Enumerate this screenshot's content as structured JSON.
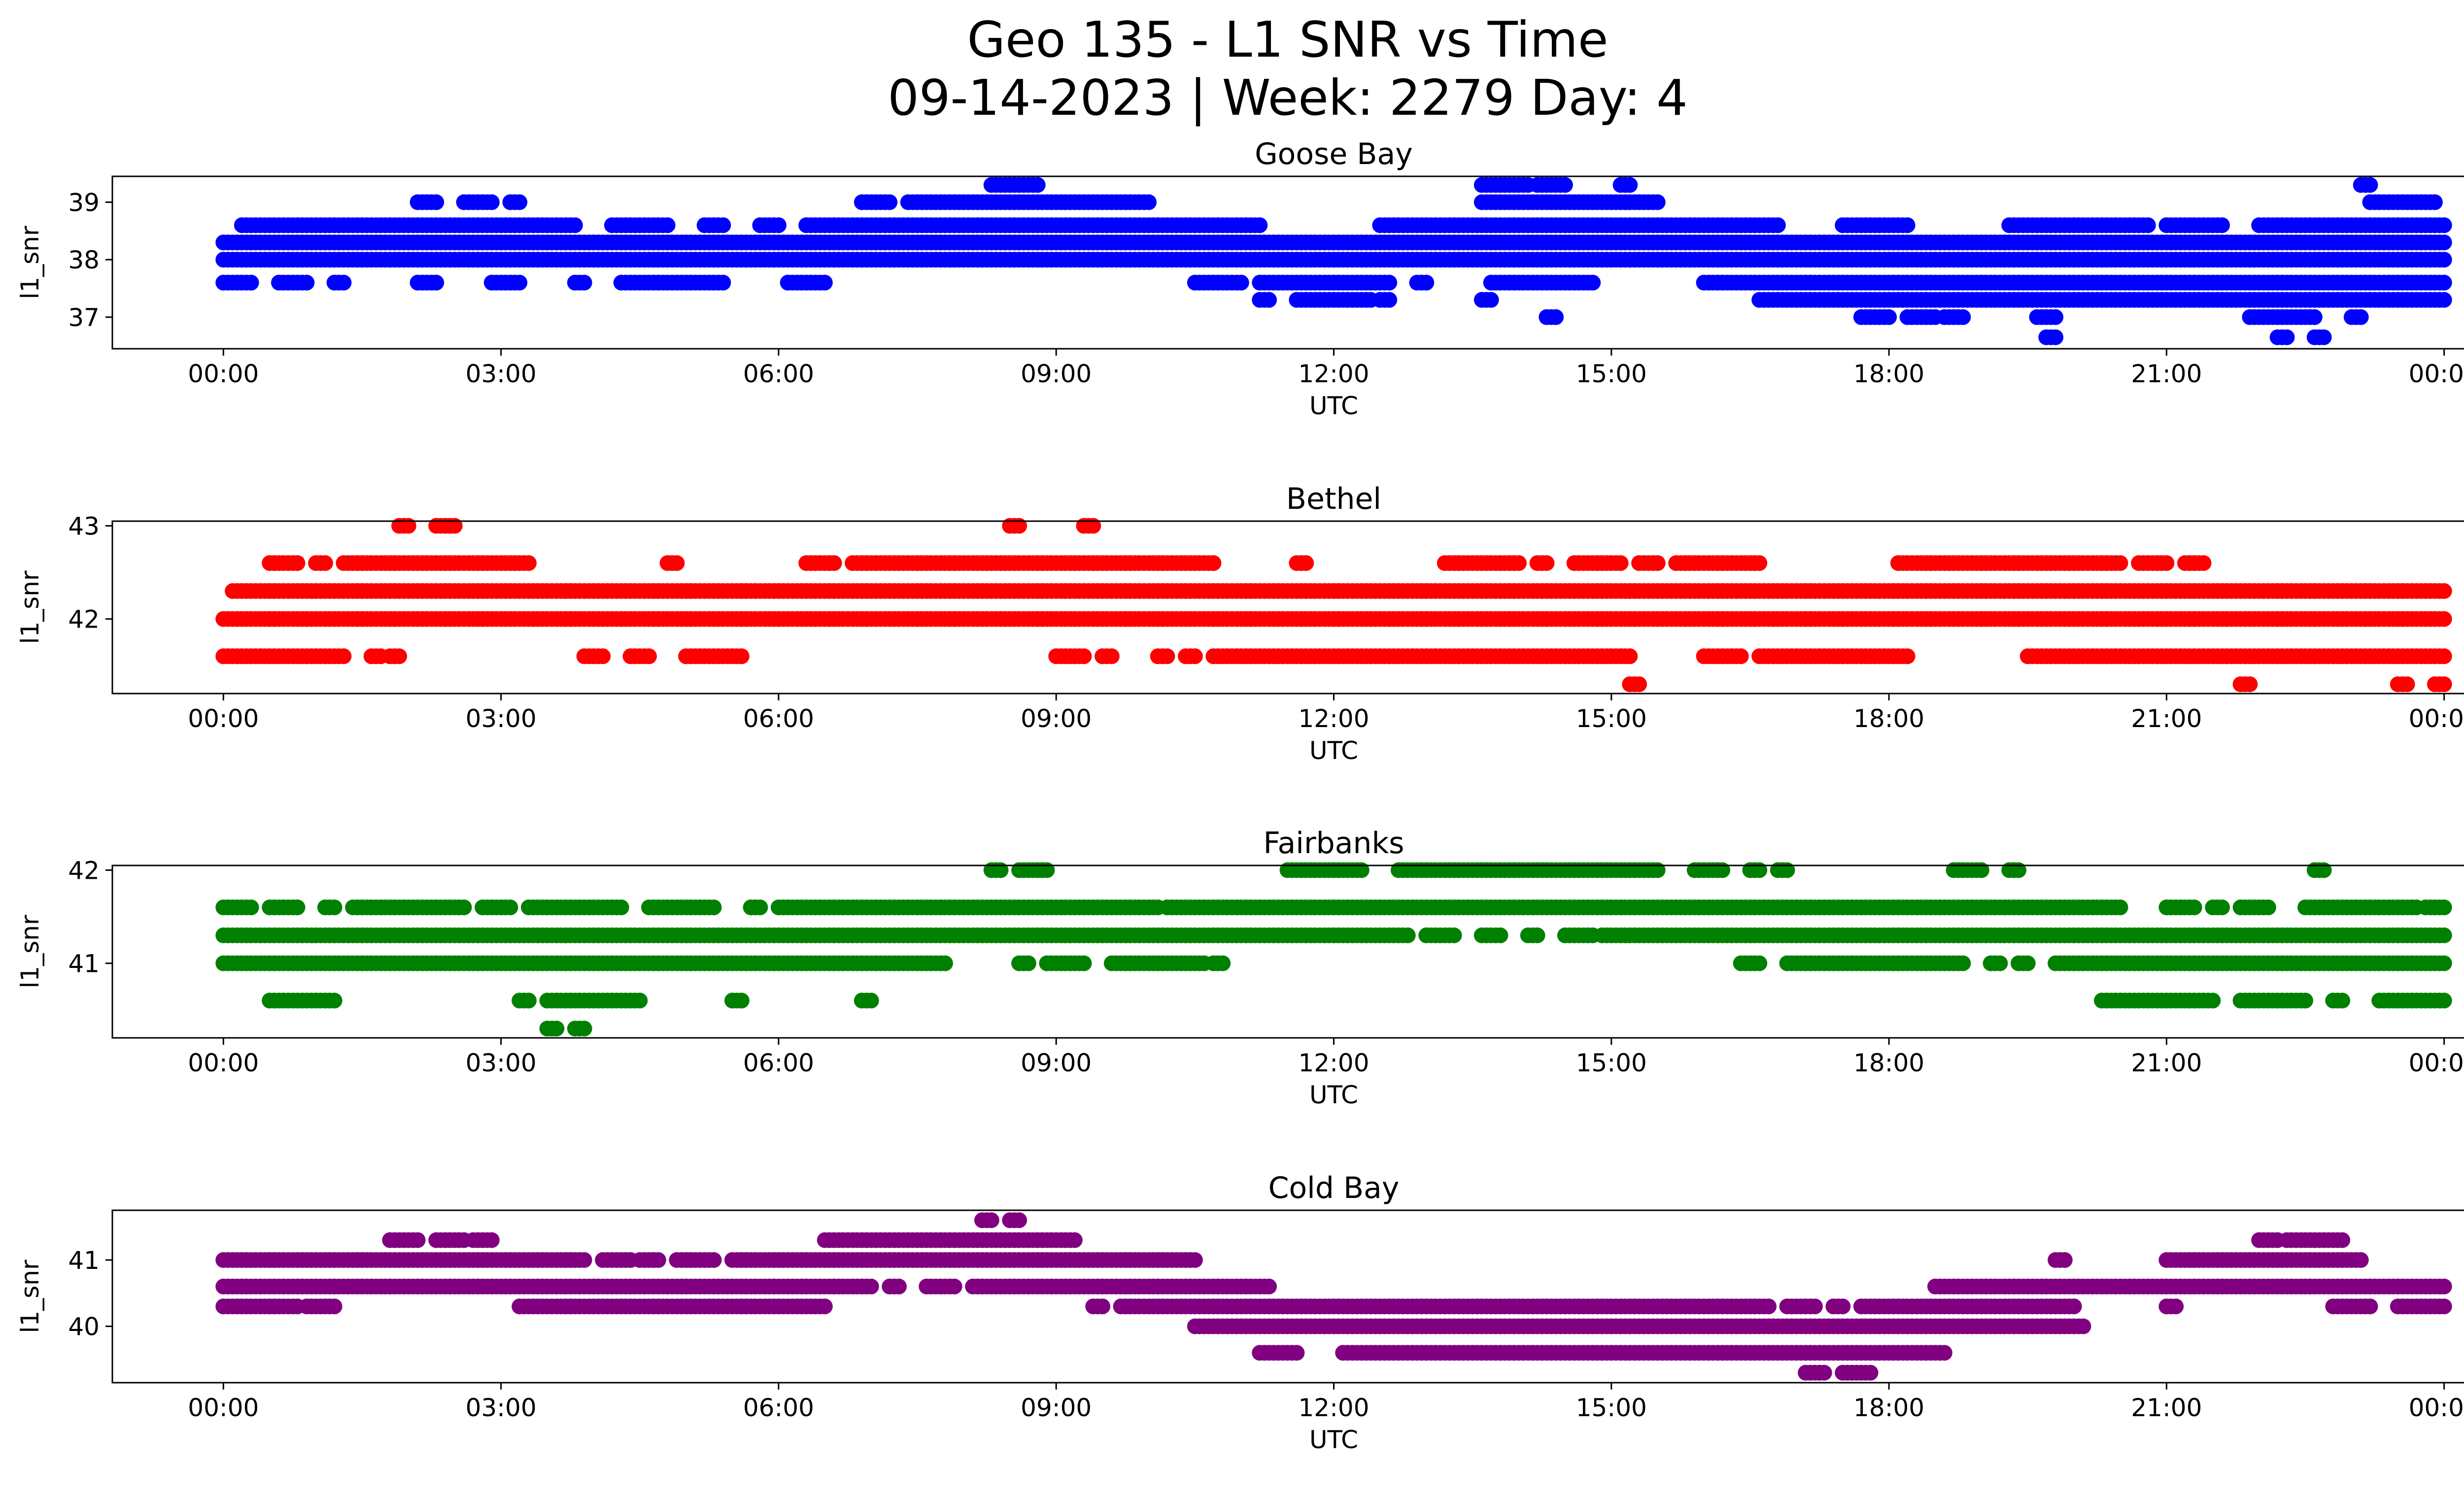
{
  "title_line1": "Geo 135 - L1 SNR vs Time",
  "title_line2": "09-14-2023 | Week: 2279 Day: 4",
  "chart_data": [
    {
      "type": "scatter",
      "title": "Goose Bay",
      "xlabel": "UTC",
      "ylabel": "l1_snr",
      "color": "#0000ff",
      "xticks": [
        "00:00",
        "03:00",
        "06:00",
        "09:00",
        "12:00",
        "15:00",
        "18:00",
        "21:00",
        "00:00"
      ],
      "xlim_hours": [
        -1.2,
        25.2
      ],
      "ylim": [
        36.45,
        39.45
      ],
      "yticks": [
        37,
        38,
        39
      ],
      "levels": [
        {
          "y": 39.3,
          "ranges": [
            [
              8.3,
              8.8
            ],
            [
              13.6,
              14.1
            ],
            [
              14.2,
              14.5
            ],
            [
              15.1,
              15.2
            ],
            [
              23.1,
              23.2
            ]
          ]
        },
        {
          "y": 39.0,
          "ranges": [
            [
              2.1,
              2.3
            ],
            [
              2.6,
              2.9
            ],
            [
              3.1,
              3.2
            ],
            [
              6.9,
              7.2
            ],
            [
              7.4,
              10.0
            ],
            [
              13.6,
              15.5
            ],
            [
              23.2,
              23.9
            ]
          ]
        },
        {
          "y": 38.6,
          "ranges": [
            [
              0.2,
              3.8
            ],
            [
              4.2,
              4.8
            ],
            [
              5.2,
              5.4
            ],
            [
              5.8,
              6.0
            ],
            [
              6.3,
              11.2
            ],
            [
              12.5,
              16.8
            ],
            [
              17.5,
              18.2
            ],
            [
              19.3,
              20.8
            ],
            [
              21.0,
              21.6
            ],
            [
              22.0,
              24.0
            ]
          ]
        },
        {
          "y": 38.3,
          "ranges": [
            [
              0.0,
              24.0
            ]
          ]
        },
        {
          "y": 38.0,
          "ranges": [
            [
              0.0,
              24.0
            ]
          ]
        },
        {
          "y": 37.6,
          "ranges": [
            [
              0.0,
              0.3
            ],
            [
              0.6,
              0.9
            ],
            [
              1.2,
              1.3
            ],
            [
              2.1,
              2.3
            ],
            [
              2.9,
              3.2
            ],
            [
              3.8,
              3.9
            ],
            [
              4.3,
              5.4
            ],
            [
              6.1,
              6.5
            ],
            [
              10.5,
              11.0
            ],
            [
              11.2,
              12.6
            ],
            [
              12.9,
              13.0
            ],
            [
              13.7,
              14.8
            ],
            [
              16.0,
              24.0
            ]
          ]
        },
        {
          "y": 37.3,
          "ranges": [
            [
              11.2,
              11.3
            ],
            [
              11.6,
              12.4
            ],
            [
              12.5,
              12.6
            ],
            [
              13.6,
              13.7
            ],
            [
              16.6,
              24.0
            ]
          ]
        },
        {
          "y": 37.0,
          "ranges": [
            [
              14.3,
              14.4
            ],
            [
              17.7,
              18.0
            ],
            [
              18.2,
              18.5
            ],
            [
              18.6,
              18.8
            ],
            [
              19.6,
              19.8
            ],
            [
              21.9,
              22.6
            ],
            [
              23.0,
              23.1
            ]
          ]
        },
        {
          "y": 36.65,
          "ranges": [
            [
              19.7,
              19.8
            ],
            [
              22.2,
              22.3
            ],
            [
              22.6,
              22.7
            ]
          ]
        }
      ]
    },
    {
      "type": "scatter",
      "title": "Bethel",
      "xlabel": "UTC",
      "ylabel": "l1_snr",
      "color": "#ff0000",
      "xticks": [
        "00:00",
        "03:00",
        "06:00",
        "09:00",
        "12:00",
        "15:00",
        "18:00",
        "21:00",
        "00:00"
      ],
      "xlim_hours": [
        -1.2,
        25.2
      ],
      "ylim": [
        41.2,
        43.05
      ],
      "yticks": [
        42,
        43
      ],
      "levels": [
        {
          "y": 43.0,
          "ranges": [
            [
              1.9,
              2.0
            ],
            [
              2.3,
              2.5
            ],
            [
              8.5,
              8.6
            ],
            [
              9.3,
              9.4
            ]
          ]
        },
        {
          "y": 42.6,
          "ranges": [
            [
              0.5,
              0.8
            ],
            [
              1.0,
              1.1
            ],
            [
              1.3,
              3.3
            ],
            [
              4.8,
              4.9
            ],
            [
              6.3,
              6.6
            ],
            [
              6.8,
              10.7
            ],
            [
              11.6,
              11.7
            ],
            [
              13.2,
              14.0
            ],
            [
              14.2,
              14.3
            ],
            [
              14.6,
              15.1
            ],
            [
              15.3,
              15.5
            ],
            [
              15.7,
              16.6
            ],
            [
              18.1,
              20.5
            ],
            [
              20.7,
              21.0
            ],
            [
              21.2,
              21.4
            ]
          ]
        },
        {
          "y": 42.3,
          "ranges": [
            [
              0.1,
              24.0
            ]
          ]
        },
        {
          "y": 42.0,
          "ranges": [
            [
              0.0,
              24.0
            ]
          ]
        },
        {
          "y": 41.6,
          "ranges": [
            [
              0.0,
              1.3
            ],
            [
              1.6,
              1.7
            ],
            [
              1.8,
              1.9
            ],
            [
              3.9,
              4.1
            ],
            [
              4.4,
              4.6
            ],
            [
              5.0,
              5.6
            ],
            [
              9.0,
              9.3
            ],
            [
              9.5,
              9.6
            ],
            [
              10.1,
              10.2
            ],
            [
              10.4,
              10.5
            ],
            [
              10.7,
              15.2
            ],
            [
              16.0,
              16.4
            ],
            [
              16.6,
              18.2
            ],
            [
              19.5,
              24.0
            ]
          ]
        },
        {
          "y": 41.3,
          "ranges": [
            [
              15.2,
              15.3
            ],
            [
              21.8,
              21.9
            ],
            [
              23.5,
              23.6
            ],
            [
              23.9,
              24.0
            ]
          ]
        }
      ]
    },
    {
      "type": "scatter",
      "title": "Fairbanks",
      "xlabel": "UTC",
      "ylabel": "l1_snr",
      "color": "#008000",
      "xticks": [
        "00:00",
        "03:00",
        "06:00",
        "09:00",
        "12:00",
        "15:00",
        "18:00",
        "21:00",
        "00:00"
      ],
      "xlim_hours": [
        -1.2,
        25.2
      ],
      "ylim": [
        40.2,
        42.05
      ],
      "yticks": [
        41,
        42
      ],
      "levels": [
        {
          "y": 42.0,
          "ranges": [
            [
              8.3,
              8.4
            ],
            [
              8.6,
              8.9
            ],
            [
              11.5,
              12.3
            ],
            [
              12.7,
              15.5
            ],
            [
              15.9,
              16.2
            ],
            [
              16.5,
              16.6
            ],
            [
              16.8,
              16.9
            ],
            [
              18.7,
              19.0
            ],
            [
              19.3,
              19.4
            ],
            [
              22.6,
              22.7
            ]
          ]
        },
        {
          "y": 41.6,
          "ranges": [
            [
              0.0,
              0.3
            ],
            [
              0.5,
              0.8
            ],
            [
              1.1,
              1.2
            ],
            [
              1.4,
              2.6
            ],
            [
              2.8,
              3.1
            ],
            [
              3.3,
              4.3
            ],
            [
              4.6,
              5.3
            ],
            [
              5.7,
              5.8
            ],
            [
              6.0,
              10.1
            ],
            [
              10.2,
              20.5
            ],
            [
              21.0,
              21.3
            ],
            [
              21.5,
              21.6
            ],
            [
              21.8,
              22.1
            ],
            [
              22.5,
              23.7
            ],
            [
              23.8,
              24.0
            ]
          ]
        },
        {
          "y": 41.3,
          "ranges": [
            [
              0.0,
              12.8
            ],
            [
              13.0,
              13.3
            ],
            [
              13.6,
              13.8
            ],
            [
              14.1,
              14.2
            ],
            [
              14.5,
              14.8
            ],
            [
              14.9,
              24.0
            ]
          ]
        },
        {
          "y": 41.0,
          "ranges": [
            [
              0.0,
              7.8
            ],
            [
              8.6,
              8.7
            ],
            [
              8.9,
              9.3
            ],
            [
              9.6,
              10.6
            ],
            [
              10.7,
              10.8
            ],
            [
              16.4,
              16.6
            ],
            [
              16.9,
              18.8
            ],
            [
              19.1,
              19.2
            ],
            [
              19.4,
              19.5
            ],
            [
              19.8,
              24.0
            ]
          ]
        },
        {
          "y": 40.6,
          "ranges": [
            [
              0.5,
              1.2
            ],
            [
              3.2,
              3.3
            ],
            [
              3.5,
              4.5
            ],
            [
              5.5,
              5.6
            ],
            [
              6.9,
              7.0
            ],
            [
              20.3,
              21.5
            ],
            [
              21.8,
              22.5
            ],
            [
              22.8,
              22.9
            ],
            [
              23.3,
              24.0
            ]
          ]
        },
        {
          "y": 40.3,
          "ranges": [
            [
              3.5,
              3.6
            ],
            [
              3.8,
              3.9
            ]
          ]
        }
      ]
    },
    {
      "type": "scatter",
      "title": "Cold Bay",
      "xlabel": "UTC",
      "ylabel": "l1_snr",
      "color": "#800080",
      "xticks": [
        "00:00",
        "03:00",
        "06:00",
        "09:00",
        "12:00",
        "15:00",
        "18:00",
        "21:00",
        "00:00"
      ],
      "xlim_hours": [
        -1.2,
        25.2
      ],
      "ylim": [
        39.15,
        41.75
      ],
      "yticks": [
        40,
        41
      ],
      "levels": [
        {
          "y": 41.6,
          "ranges": [
            [
              8.2,
              8.3
            ],
            [
              8.5,
              8.6
            ]
          ]
        },
        {
          "y": 41.3,
          "ranges": [
            [
              1.8,
              2.1
            ],
            [
              2.3,
              2.6
            ],
            [
              2.7,
              2.9
            ],
            [
              6.5,
              9.2
            ],
            [
              22.0,
              22.2
            ],
            [
              22.3,
              22.9
            ]
          ]
        },
        {
          "y": 41.0,
          "ranges": [
            [
              0.0,
              3.9
            ],
            [
              4.1,
              4.4
            ],
            [
              4.5,
              4.7
            ],
            [
              4.9,
              5.3
            ],
            [
              5.5,
              10.5
            ],
            [
              19.8,
              19.9
            ],
            [
              21.0,
              23.1
            ]
          ]
        },
        {
          "y": 40.6,
          "ranges": [
            [
              0.0,
              7.0
            ],
            [
              7.2,
              7.3
            ],
            [
              7.6,
              7.9
            ],
            [
              8.1,
              11.3
            ],
            [
              18.5,
              24.0
            ]
          ]
        },
        {
          "y": 40.3,
          "ranges": [
            [
              0.0,
              0.8
            ],
            [
              0.9,
              1.2
            ],
            [
              3.2,
              6.5
            ],
            [
              9.4,
              9.5
            ],
            [
              9.7,
              16.7
            ],
            [
              16.9,
              17.2
            ],
            [
              17.4,
              17.5
            ],
            [
              17.7,
              20.0
            ],
            [
              21.0,
              21.1
            ],
            [
              22.8,
              23.2
            ],
            [
              23.5,
              24.0
            ]
          ]
        },
        {
          "y": 40.0,
          "ranges": [
            [
              10.5,
              20.1
            ]
          ]
        },
        {
          "y": 39.6,
          "ranges": [
            [
              11.2,
              11.6
            ],
            [
              12.1,
              18.6
            ]
          ]
        },
        {
          "y": 39.3,
          "ranges": [
            [
              17.1,
              17.3
            ],
            [
              17.5,
              17.8
            ]
          ]
        }
      ]
    }
  ]
}
